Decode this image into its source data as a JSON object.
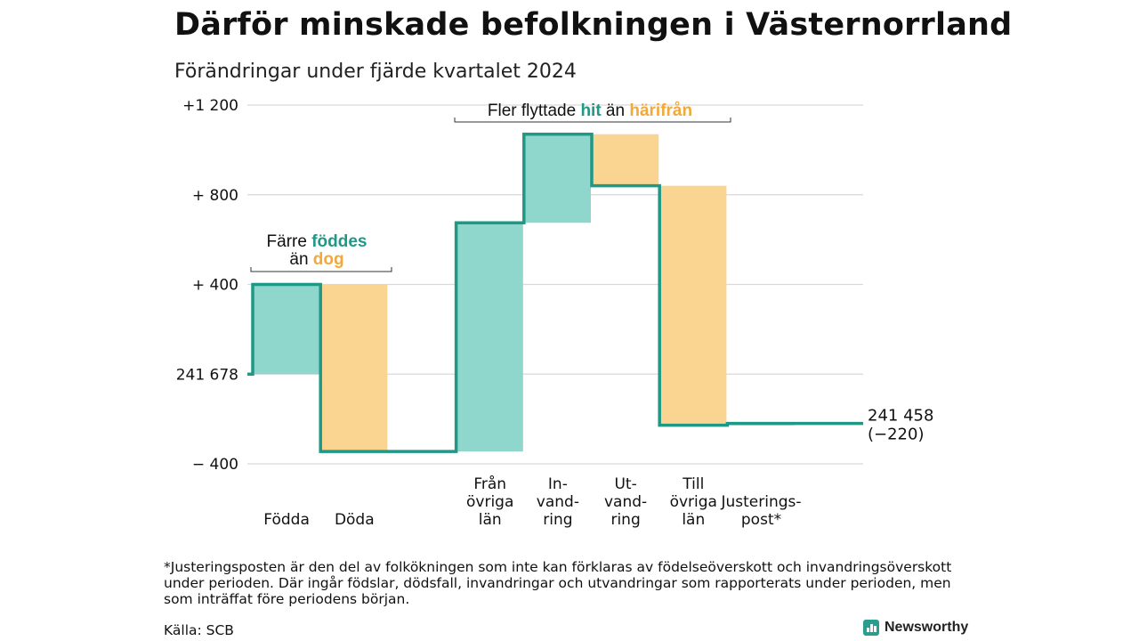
{
  "header": {
    "title": "Därför minskade befolkningen i Västernorrland",
    "subtitle": "Förändringar under fjärde kvartalet 2024"
  },
  "chart_data": {
    "type": "waterfall",
    "baseline_label": "241 678",
    "end_value_label": "241 458",
    "end_change_label": "(−220)",
    "y_ticks": [
      {
        "value": 1200,
        "label": "+1 200"
      },
      {
        "value": 800,
        "label": "+  800"
      },
      {
        "value": 400,
        "label": "+  400"
      },
      {
        "value": 0,
        "label": "241 678"
      },
      {
        "value": -400,
        "label": "−  400"
      }
    ],
    "ylim": [
      -400,
      1200
    ],
    "bars": [
      {
        "label": [
          "Födda"
        ],
        "start": 0,
        "end": 400,
        "kind": "increase"
      },
      {
        "label": [
          "Döda"
        ],
        "start": 400,
        "end": -345,
        "kind": "decrease"
      },
      {
        "label": [],
        "start": -345,
        "end": -345,
        "kind": "none"
      },
      {
        "label": [
          "Från",
          "övriga",
          "län"
        ],
        "start": -345,
        "end": 675,
        "kind": "increase"
      },
      {
        "label": [
          "In-",
          "vand-",
          "ring"
        ],
        "start": 675,
        "end": 1070,
        "kind": "increase"
      },
      {
        "label": [
          "Ut-",
          "vand-",
          "ring"
        ],
        "start": 1070,
        "end": 840,
        "kind": "decrease"
      },
      {
        "label": [
          "Till",
          "övriga",
          "län"
        ],
        "start": 840,
        "end": -228,
        "kind": "decrease"
      },
      {
        "label": [
          "Justerings-",
          "post*"
        ],
        "start": -228,
        "end": -220,
        "kind": "increase"
      }
    ],
    "annotations": [
      {
        "parts": [
          {
            "text": "Färre ",
            "color": "plain"
          },
          {
            "text": "föddes",
            "color": "increase"
          }
        ],
        "line2": [
          {
            "text": "än ",
            "color": "plain"
          },
          {
            "text": "dog",
            "color": "decrease"
          }
        ]
      },
      {
        "parts": [
          {
            "text": "Fler flyttade ",
            "color": "plain"
          },
          {
            "text": "hit",
            "color": "increase"
          },
          {
            "text": "  än ",
            "color": "plain"
          },
          {
            "text": "härifrån",
            "color": "decrease"
          }
        ]
      }
    ],
    "colors": {
      "increase": "#8fd6cc",
      "decrease": "#fad592",
      "line": "#1f9886",
      "increase_text": "#1f9886",
      "decrease_text": "#f2a93b",
      "grid": "#d9d9d9"
    }
  },
  "footer": {
    "footnote": "*Justeringsposten är den del av folkökningen som inte kan förklaras av födelseöverskott och invandringsöverskott under perioden. Där ingår födslar, dödsfall, invandringar och utvandringar som rapporterats under perioden, men som inträffat före periodens början.",
    "source": "Källa: SCB",
    "brand": "Newsworthy"
  }
}
